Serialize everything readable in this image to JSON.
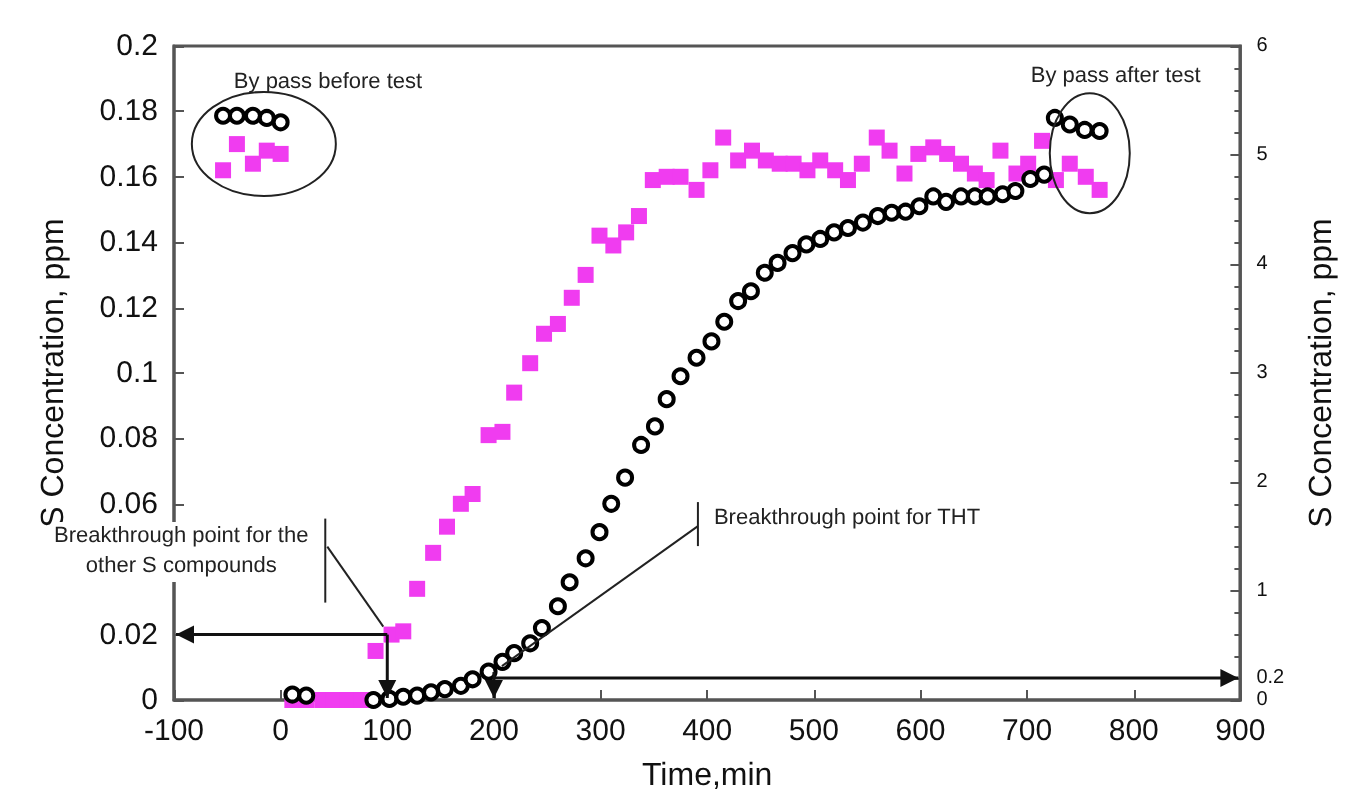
{
  "chart_data": {
    "type": "scatter",
    "xlabel": "Time,min",
    "ylabel": "S Concentration, ppm",
    "y2label": "S Concentration, ppm",
    "xlim": [
      -100,
      900
    ],
    "xticks": [
      -100,
      0,
      100,
      200,
      300,
      400,
      500,
      600,
      700,
      800,
      900
    ],
    "ylim": [
      0,
      0.2
    ],
    "yticks": [
      0,
      0.02,
      0.06,
      0.08,
      0.1,
      0.12,
      0.14,
      0.16,
      0.18,
      0.2
    ],
    "y2lim": [
      0,
      6
    ],
    "y2ticks": [
      0,
      0.2,
      1,
      2,
      3,
      4,
      5,
      6
    ],
    "grid": false,
    "legend": false,
    "series": [
      {
        "color": "#f03cf0",
        "marker": "square",
        "x": [
          -54,
          -41,
          -26,
          -13,
          0,
          11,
          24,
          39,
          50,
          63,
          76,
          89,
          104,
          115,
          128,
          143,
          156,
          169,
          180,
          195,
          208,
          219,
          234,
          247,
          260,
          273,
          286,
          299,
          312,
          324,
          336,
          349,
          362,
          375,
          390,
          403,
          415,
          429,
          442,
          455,
          468,
          481,
          494,
          506,
          520,
          532,
          545,
          559,
          571,
          585,
          598,
          612,
          625,
          638,
          651,
          662,
          675,
          690,
          701,
          714,
          727,
          740,
          755,
          768
        ],
        "values": [
          0.162,
          0.17,
          0.164,
          0.168,
          0.167,
          0.0,
          0.0,
          0.0,
          0.0,
          0.0,
          0.0,
          0.015,
          0.02,
          0.021,
          0.034,
          0.045,
          0.053,
          0.06,
          0.063,
          0.081,
          0.082,
          0.094,
          0.103,
          0.112,
          0.115,
          0.123,
          0.13,
          0.142,
          0.139,
          0.143,
          0.148,
          0.159,
          0.16,
          0.16,
          0.156,
          0.162,
          0.172,
          0.165,
          0.168,
          0.165,
          0.164,
          0.164,
          0.162,
          0.165,
          0.162,
          0.159,
          0.164,
          0.172,
          0.168,
          0.161,
          0.167,
          0.169,
          0.167,
          0.164,
          0.161,
          0.159,
          0.168,
          0.161,
          0.164,
          0.171,
          0.159,
          0.164,
          0.16,
          0.156
        ]
      },
      {
        "color": "#000000",
        "marker": "circle",
        "axis": "y2",
        "x": [
          -54,
          -41,
          -26,
          -13,
          0,
          11,
          24,
          87,
          102,
          115,
          128,
          141,
          154,
          169,
          180,
          195,
          208,
          219,
          234,
          245,
          260,
          271,
          286,
          299,
          310,
          323,
          338,
          351,
          362,
          375,
          390,
          404,
          416,
          429,
          441,
          454,
          466,
          480,
          493,
          506,
          519,
          532,
          546,
          560,
          573,
          586,
          599,
          612,
          624,
          638,
          651,
          663,
          677,
          689,
          703,
          716,
          726,
          740,
          754,
          768
        ],
        "values": [
          5.36,
          5.36,
          5.36,
          5.34,
          5.3,
          0.05,
          0.04,
          0.0,
          0.01,
          0.03,
          0.04,
          0.07,
          0.1,
          0.13,
          0.19,
          0.26,
          0.35,
          0.43,
          0.52,
          0.66,
          0.86,
          1.08,
          1.3,
          1.54,
          1.8,
          2.04,
          2.34,
          2.51,
          2.76,
          2.97,
          3.14,
          3.29,
          3.47,
          3.66,
          3.75,
          3.92,
          4.01,
          4.1,
          4.18,
          4.23,
          4.29,
          4.33,
          4.38,
          4.44,
          4.47,
          4.48,
          4.53,
          4.62,
          4.57,
          4.62,
          4.62,
          4.62,
          4.64,
          4.67,
          4.78,
          4.82,
          5.34,
          5.28,
          5.23,
          5.22
        ]
      }
    ],
    "annotations": [
      {
        "text": "By pass before test",
        "x": -27,
        "y": 0.178
      },
      {
        "text": "By pass after test",
        "x": 755,
        "y": 0.177
      },
      {
        "text": "Breakthrough point for the other S compounds",
        "x": 100,
        "y": 0.02
      },
      {
        "text": "Breakthrough point for THT",
        "x": 200,
        "y": 0.0067
      }
    ]
  }
}
